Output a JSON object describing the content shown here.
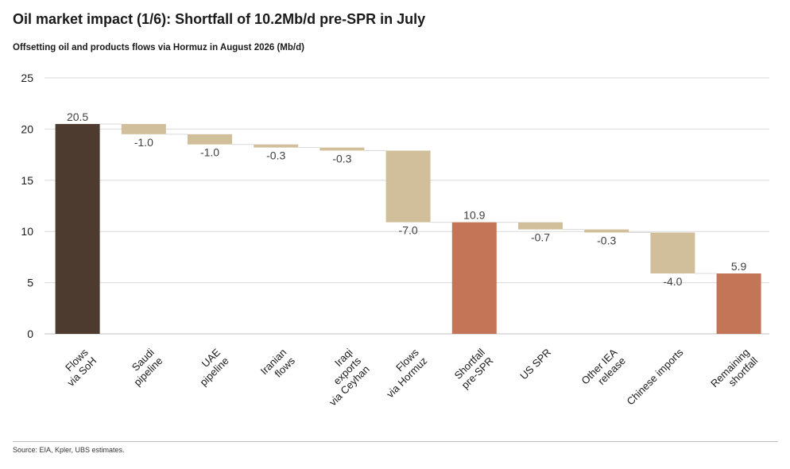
{
  "header": {
    "title": "Oil market impact (1/6): Shortfall of 10.2Mb/d pre-SPR in July",
    "subtitle": "Offsetting oil and products flows via Hormuz in August 2026 (Mb/d)"
  },
  "footer": {
    "source": "Source: EIA, Kpler, UBS estimates."
  },
  "chart_data": {
    "type": "bar",
    "subtype": "waterfall",
    "ylim": [
      0,
      25
    ],
    "yticks": [
      0,
      5,
      10,
      15,
      20,
      25
    ],
    "grid": true,
    "categories": [
      "Flows\nvia SoH",
      "Saudi\npipeline",
      "UAE\npipeline",
      "Iranian\nflows",
      "Iraqi\nexports\nvia Ceyhan",
      "Flows\nvia Hormuz",
      "Shortfall\npre-SPR",
      "US SPR",
      "Other IEA\nrelease",
      "Chinese imports",
      "Remaining\nshortfall"
    ],
    "values": [
      20.5,
      -1.0,
      -1.0,
      -0.3,
      -0.3,
      -7.0,
      10.9,
      -0.7,
      -0.3,
      -4.0,
      5.9
    ],
    "value_labels": [
      "20.5",
      "-1.0",
      "-1.0",
      "-0.3",
      "-0.3",
      "-7.0",
      "10.9",
      "-0.7",
      "-0.3",
      "-4.0",
      "5.9"
    ],
    "bar_kinds": [
      "total-dark",
      "delta",
      "delta",
      "delta",
      "delta",
      "delta",
      "total",
      "delta",
      "delta",
      "delta",
      "total"
    ],
    "colors": {
      "total-dark": "#4e3b2f",
      "delta": "#d1bf9b",
      "total": "#c47457",
      "grid": "#d9d9d9",
      "connector": "#d9d9d9",
      "axis": "#bfbfbf"
    }
  }
}
